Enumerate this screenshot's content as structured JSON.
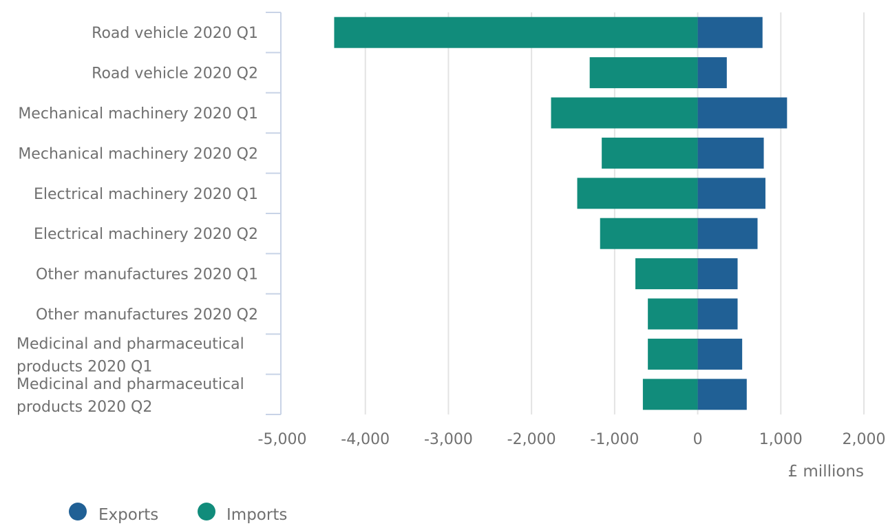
{
  "chart_data": {
    "type": "bar",
    "orientation": "horizontal",
    "stacking": "diverging",
    "categories": [
      "Road vehicle 2020 Q1",
      "Road vehicle 2020 Q2",
      "Mechanical machinery 2020 Q1",
      "Mechanical machinery 2020 Q2",
      "Electrical machinery 2020 Q1",
      "Electrical machinery 2020 Q2",
      "Other manufactures 2020 Q1",
      "Other manufactures 2020 Q2",
      "Medicinal and pharmaceutical products 2020 Q1",
      "Medicinal and pharmaceutical products 2020 Q2"
    ],
    "category_lines": [
      [
        "Road vehicle 2020 Q1"
      ],
      [
        "Road vehicle 2020 Q2"
      ],
      [
        "Mechanical machinery 2020 Q1"
      ],
      [
        "Mechanical machinery 2020 Q2"
      ],
      [
        "Electrical machinery 2020 Q1"
      ],
      [
        "Electrical machinery 2020 Q2"
      ],
      [
        "Other manufactures 2020 Q1"
      ],
      [
        "Other manufactures 2020 Q2"
      ],
      [
        "Medicinal and pharmaceutical",
        "products 2020 Q1"
      ],
      [
        "Medicinal and pharmaceutical",
        "products 2020 Q2"
      ]
    ],
    "series": [
      {
        "name": "Exports",
        "color": "#206095",
        "values": [
          780,
          350,
          1075,
          795,
          815,
          720,
          480,
          480,
          535,
          590
        ]
      },
      {
        "name": "Imports",
        "color": "#118c7b",
        "values": [
          -4375,
          -1300,
          -1765,
          -1155,
          -1450,
          -1175,
          -750,
          -600,
          -600,
          -660
        ]
      }
    ],
    "xlim": [
      -5000,
      2000
    ],
    "xticks": [
      -5000,
      -4000,
      -3000,
      -2000,
      -1000,
      0,
      1000,
      2000
    ],
    "xtick_labels": [
      "-5,000",
      "-4,000",
      "-3,000",
      "-2,000",
      "-1,000",
      "0",
      "1,000",
      "2,000"
    ],
    "xlabel": "£ millions",
    "ylabel": "",
    "title": "",
    "grid": true,
    "legend_position": "bottom-left",
    "axis_color": "#c8d3e6",
    "grid_color": "#e3e3e3",
    "text_color": "#707070"
  }
}
